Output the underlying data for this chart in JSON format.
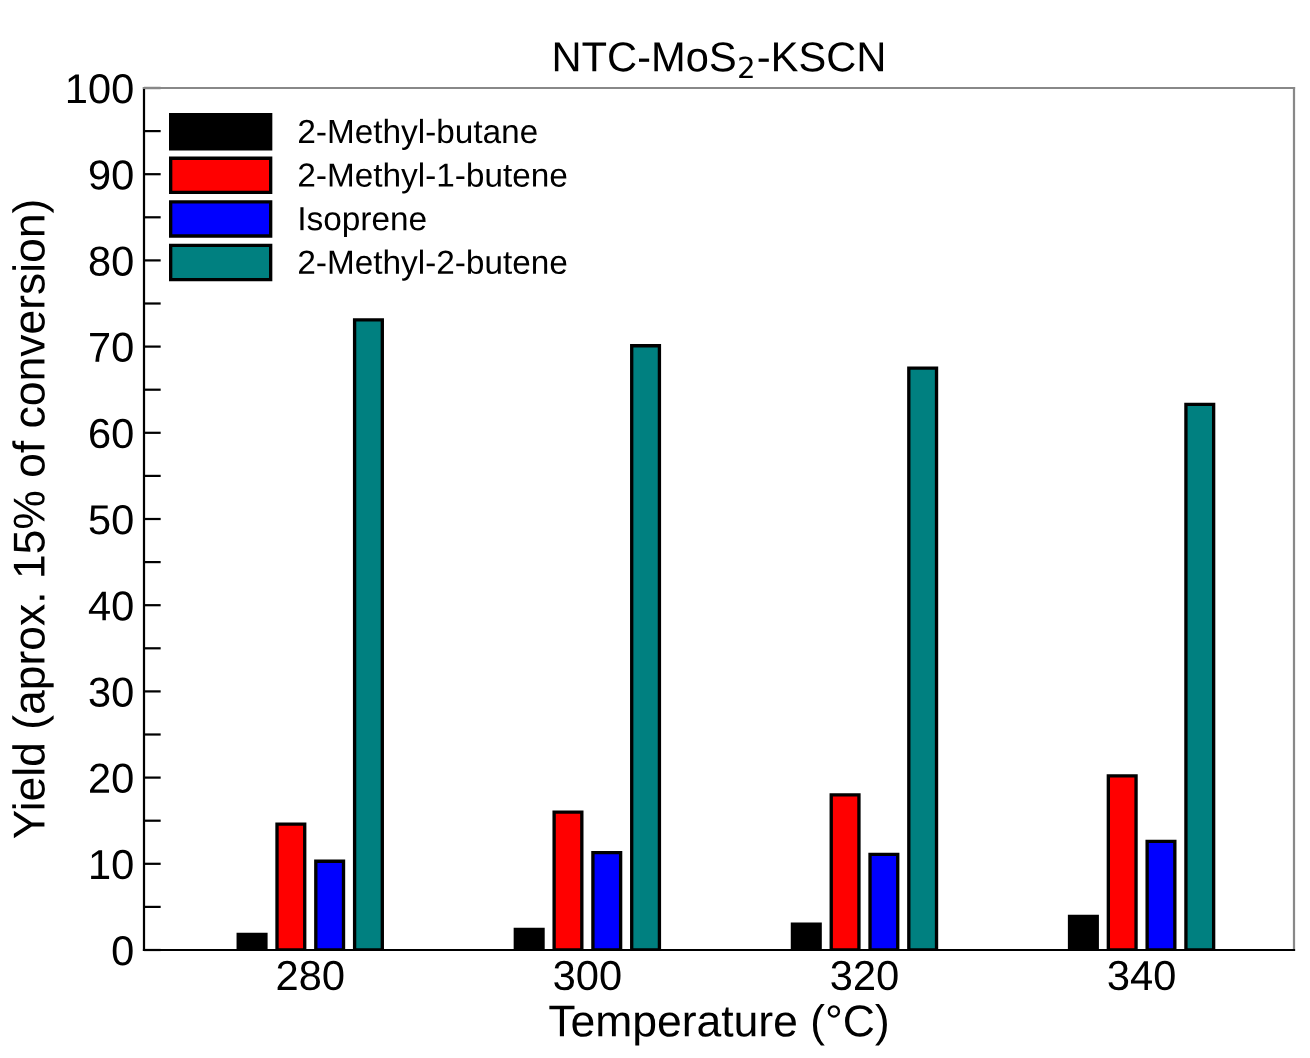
{
  "chart_data": {
    "type": "bar",
    "title": "NTC-MoS$_{2}$-KSCN",
    "xlabel": "Temperature (°C)",
    "ylabel": "Yield (aprox. 15% of conversion)",
    "categories": [
      "280",
      "300",
      "320",
      "340"
    ],
    "series": [
      {
        "name": "2-Methyl-butane",
        "color": "#000000",
        "values": [
          1.8,
          2.4,
          3.0,
          3.9
        ]
      },
      {
        "name": "2-Methyl-1-butene",
        "color": "#ff0000",
        "values": [
          14.6,
          16.0,
          18.0,
          20.2
        ]
      },
      {
        "name": "Isoprene",
        "color": "#0000ff",
        "values": [
          10.3,
          11.3,
          11.1,
          12.6
        ]
      },
      {
        "name": "2-Methyl-2-butene",
        "color": "#008080",
        "values": [
          73.1,
          70.1,
          67.5,
          63.3
        ]
      }
    ],
    "ylim": [
      0,
      100
    ],
    "yticks": [
      0,
      {
        "value": 5,
        "label": null
      },
      10,
      {
        "value": 15,
        "label": null
      },
      20,
      {
        "value": 25,
        "label": null
      },
      30,
      {
        "value": 35,
        "label": null
      },
      40,
      {
        "value": 45,
        "label": null
      },
      50,
      {
        "value": 55,
        "label": null
      },
      60,
      {
        "value": 65,
        "label": null
      },
      70,
      {
        "value": 75,
        "label": null
      },
      80,
      {
        "value": 85,
        "label": null
      },
      90,
      {
        "value": 95,
        "label": null
      },
      100
    ],
    "legend": "top left",
    "grid": false
  }
}
